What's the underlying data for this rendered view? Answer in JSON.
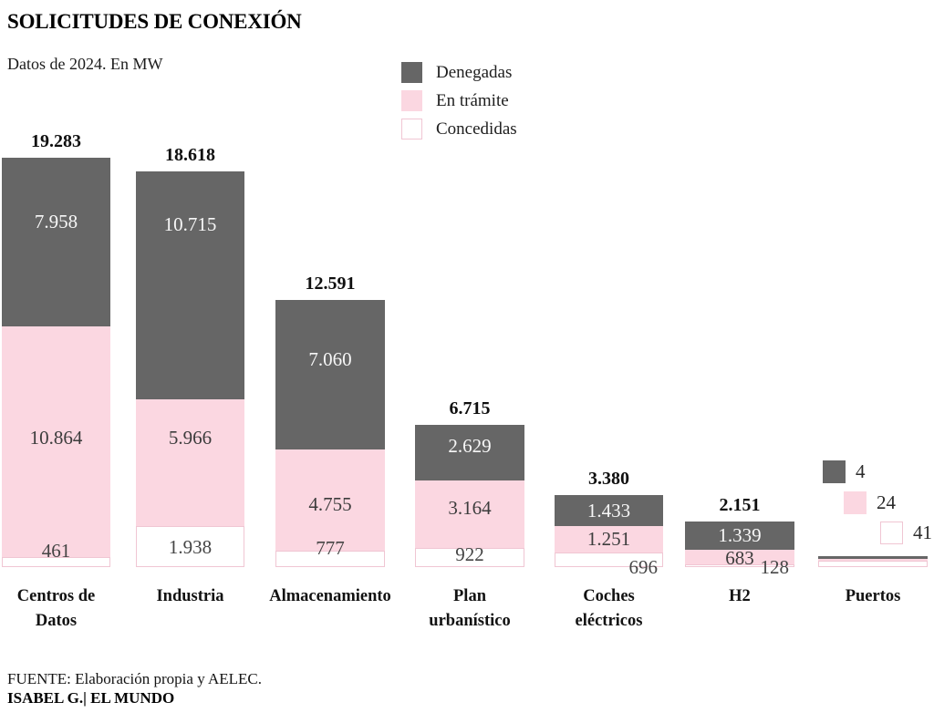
{
  "header": {
    "title": "SOLICITUDES DE CONEXIÓN",
    "subtitle": "Datos de 2024. En MW"
  },
  "legend": [
    {
      "label": "Denegadas",
      "color": "#666666",
      "border": "#666666"
    },
    {
      "label": "En trámite",
      "color": "#fbd7e1",
      "border": "#fbd7e1"
    },
    {
      "label": "Concedidas",
      "color": "#ffffff",
      "border": "#f0c6d3"
    }
  ],
  "chart_data": {
    "type": "bar",
    "stacked": true,
    "unit": "MW",
    "title": "SOLICITUDES DE CONEXIÓN",
    "subtitle": "Datos de 2024. En MW",
    "legend_position": "top-center",
    "grid": false,
    "categories": [
      "Centros de Datos",
      "Industria",
      "Almacenamiento",
      "Plan urbanístico",
      "Coches eléctricos",
      "H2",
      "Puertos"
    ],
    "series": [
      {
        "name": "Denegadas",
        "color": "#666666",
        "values": [
          7958,
          10715,
          7060,
          2629,
          1433,
          1339,
          4
        ],
        "labels": [
          "7.958",
          "10.715",
          "7.060",
          "2.629",
          "1.433",
          "1.339",
          "4"
        ]
      },
      {
        "name": "En trámite",
        "color": "#fbd7e1",
        "values": [
          10864,
          5966,
          4755,
          3164,
          1251,
          683,
          24
        ],
        "labels": [
          "10.864",
          "5.966",
          "4.755",
          "3.164",
          "1.251",
          "683",
          "24"
        ]
      },
      {
        "name": "Concedidas",
        "color": "#ffffff",
        "values": [
          461,
          1938,
          777,
          922,
          696,
          128,
          41
        ],
        "labels": [
          "461",
          "1.938",
          "777",
          "922",
          "696",
          "128",
          "41"
        ]
      }
    ],
    "totals": [
      19283,
      18618,
      12591,
      6715,
      3380,
      2151,
      69
    ],
    "total_labels": [
      "19.283",
      "18.618",
      "12.591",
      "6.715",
      "3.380",
      "2.151",
      null
    ],
    "ylim": [
      0,
      19283
    ]
  },
  "footer": {
    "source": "FUENTE: Elaboración propia y AELEC.",
    "credit": "ISABEL G.| EL MUNDO"
  }
}
